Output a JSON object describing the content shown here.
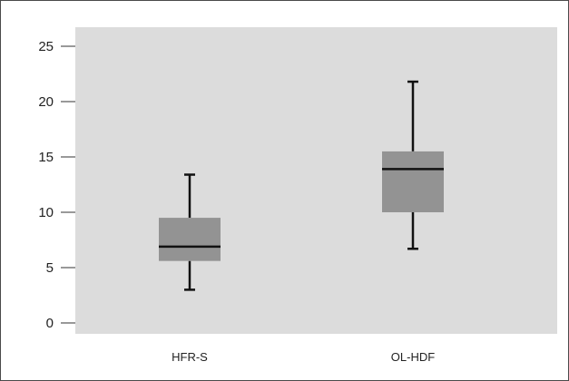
{
  "chart_data": {
    "type": "boxplot",
    "title": "",
    "xlabel": "",
    "ylabel": "",
    "ylim": [
      0,
      25
    ],
    "yticks": [
      "0",
      "5",
      "10",
      "15",
      "20",
      "25"
    ],
    "categories": [
      "HFR-S",
      "OL-HDF"
    ],
    "boxes": [
      {
        "category": "HFR-S",
        "min": 3.0,
        "q1": 5.6,
        "median": 6.9,
        "q3": 9.5,
        "max": 13.4
      },
      {
        "category": "OL-HDF",
        "min": 6.7,
        "q1": 10.0,
        "median": 13.9,
        "q3": 15.5,
        "max": 21.8
      }
    ],
    "grid": false,
    "legend": "none"
  },
  "colors": {
    "plot_background": "#dcdcdc",
    "box_fill": "#939393",
    "line": "#111111"
  }
}
